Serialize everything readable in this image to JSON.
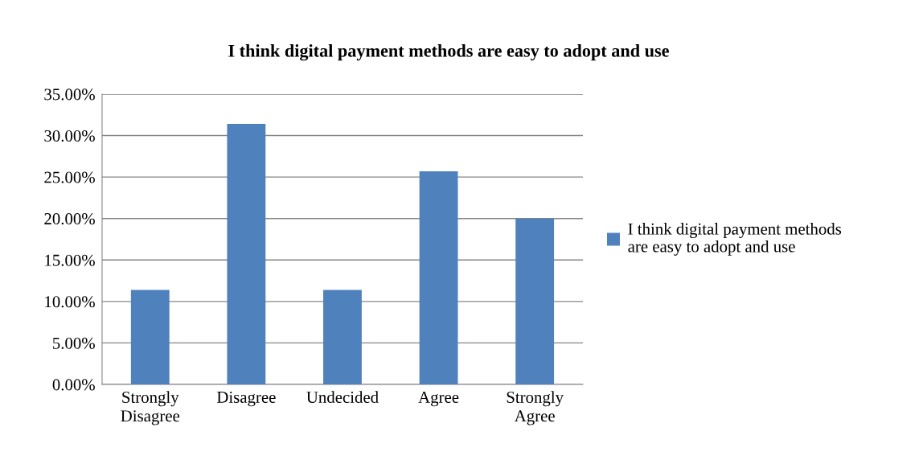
{
  "chart_data": {
    "type": "bar",
    "title": "I think digital payment methods are easy to adopt and use",
    "categories": [
      "Strongly\nDisagree",
      "Disagree",
      "Undecided",
      "Agree",
      "Strongly\nAgree"
    ],
    "series": [
      {
        "name": "I think digital payment methods\nare easy to adopt and use",
        "color": "#4f81bd",
        "values": [
          11.4,
          31.4,
          11.4,
          25.7,
          20.0
        ]
      }
    ],
    "ylim": [
      0,
      35
    ],
    "yticks": [
      {
        "value": 0,
        "label": "0.00%"
      },
      {
        "value": 5,
        "label": "5.00%"
      },
      {
        "value": 10,
        "label": "10.00%"
      },
      {
        "value": 15,
        "label": "15.00%"
      },
      {
        "value": 20,
        "label": "20.00%"
      },
      {
        "value": 25,
        "label": "25.00%"
      },
      {
        "value": 30,
        "label": "30.00%"
      },
      {
        "value": 35,
        "label": "35.00%"
      }
    ],
    "grid": "y",
    "legend": "right"
  }
}
